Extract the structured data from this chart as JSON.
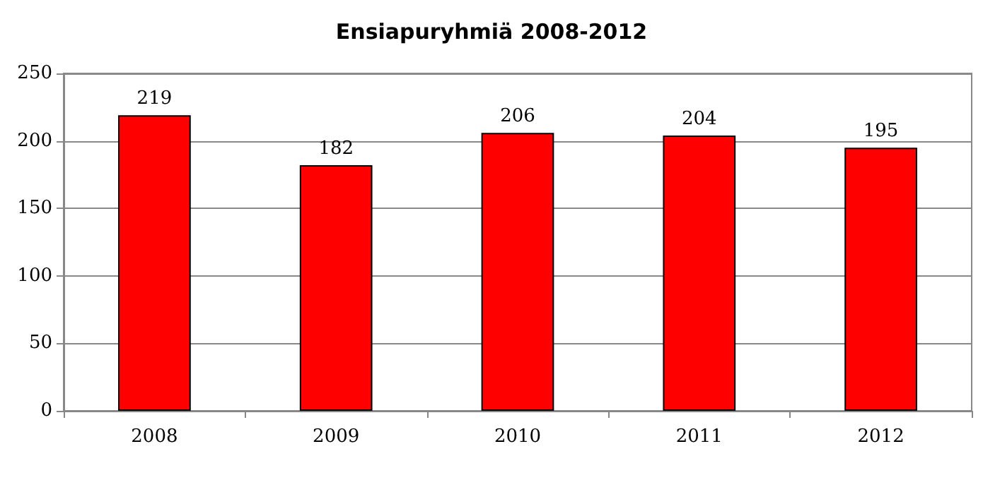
{
  "chart_data": {
    "type": "bar",
    "title": "Ensiapuryhmiä 2008-2012",
    "categories": [
      "2008",
      "2009",
      "2010",
      "2011",
      "2012"
    ],
    "values": [
      219,
      182,
      206,
      204,
      195
    ],
    "color": "#ff0000",
    "ylim": [
      0,
      250
    ],
    "yticks": [
      0,
      50,
      100,
      150,
      200,
      250
    ],
    "grid": "y",
    "data_labels": true
  }
}
